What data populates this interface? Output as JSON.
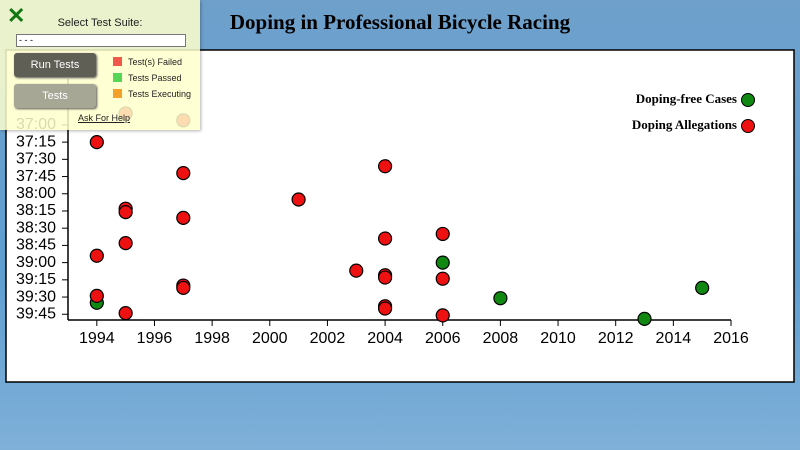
{
  "chart_data": {
    "type": "scatter",
    "title": "Doping in Professional Bicycle Racing",
    "xlim": [
      1993,
      2016
    ],
    "xticks": [
      1994,
      1996,
      1998,
      2000,
      2002,
      2004,
      2006,
      2008,
      2010,
      2012,
      2014,
      2016
    ],
    "ylim": [
      2180,
      2390
    ],
    "y_inverted": true,
    "yticks": [
      {
        "value": 2220,
        "label": "37:00"
      },
      {
        "value": 2235,
        "label": "37:15"
      },
      {
        "value": 2250,
        "label": "37:30"
      },
      {
        "value": 2265,
        "label": "37:45"
      },
      {
        "value": 2280,
        "label": "38:00"
      },
      {
        "value": 2295,
        "label": "38:15"
      },
      {
        "value": 2310,
        "label": "38:30"
      },
      {
        "value": 2325,
        "label": "38:45"
      },
      {
        "value": 2340,
        "label": "39:00"
      },
      {
        "value": 2355,
        "label": "39:15"
      },
      {
        "value": 2370,
        "label": "39:30"
      },
      {
        "value": 2385,
        "label": "39:45"
      }
    ],
    "legend_position": "top-right",
    "series": [
      {
        "name": "Doping-free Cases",
        "color": "#118811",
        "x": [
          2006,
          2015,
          2008,
          1994,
          2013
        ],
        "values": [
          2340,
          2362,
          2371,
          2375,
          2389
        ]
      },
      {
        "name": "Doping Allegations",
        "color": "#ee1111",
        "x": [
          1995,
          1997,
          1994,
          2004,
          1997,
          2001,
          1995,
          1995,
          1997,
          2006,
          2004,
          1995,
          1994,
          2003,
          2004,
          2004,
          2006,
          1997,
          1997,
          1994,
          2004,
          2004,
          1995,
          2006
        ],
        "values": [
          2210,
          2216,
          2235,
          2256,
          2262,
          2285,
          2293,
          2296,
          2301,
          2315,
          2319,
          2323,
          2334,
          2347,
          2351,
          2353,
          2354,
          2360,
          2362,
          2369,
          2378,
          2380,
          2384,
          2386
        ]
      }
    ]
  },
  "test_panel": {
    "heading": "Select Test Suite:",
    "select": "- - -",
    "run_button": "Run Tests",
    "tests_button": "Tests",
    "legend": [
      "Test(s) Failed",
      "Tests Passed",
      "Tests Executing"
    ],
    "help": "Ask For Help"
  }
}
